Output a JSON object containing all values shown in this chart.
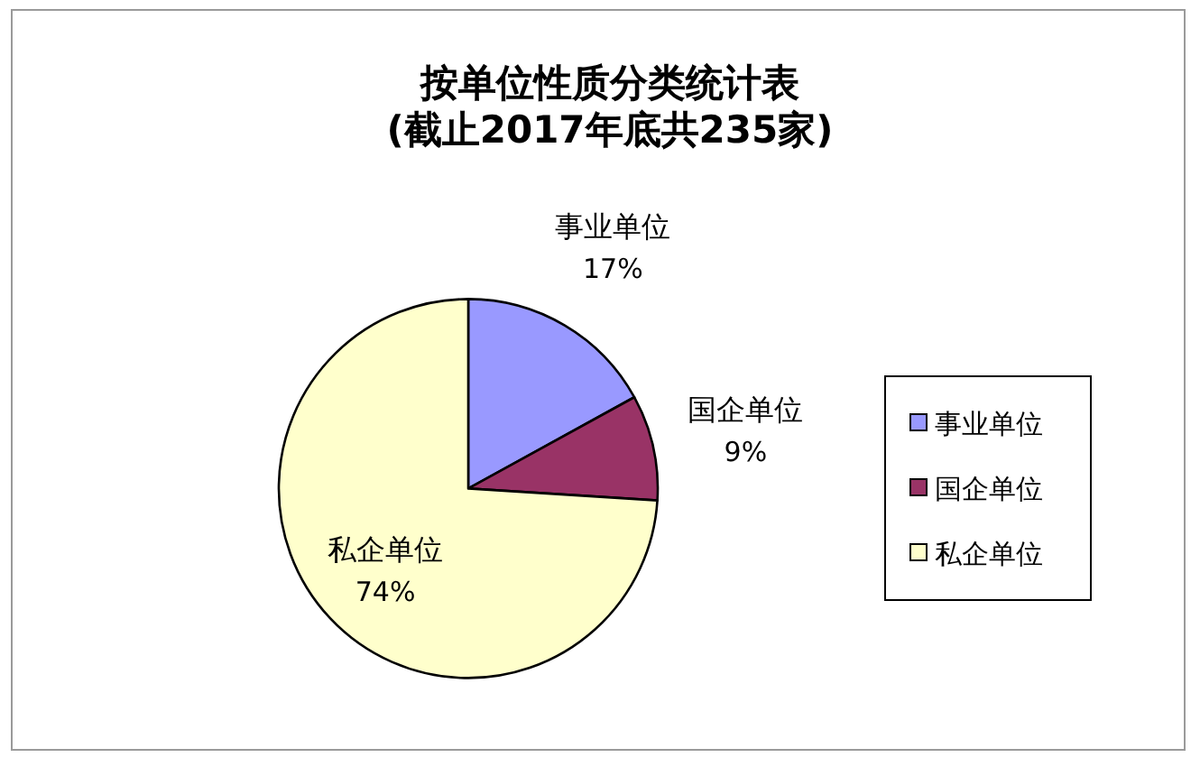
{
  "chart_data": {
    "type": "pie",
    "title": "按单位性质分类统计表",
    "subtitle": "(截止2017年底共235家)",
    "categories": [
      "事业单位",
      "国企单位",
      "私企单位"
    ],
    "values": [
      17,
      9,
      74
    ],
    "colors": [
      "#9999ff",
      "#993366",
      "#ffffcc"
    ],
    "value_labels": [
      "17%",
      "9%",
      "74%"
    ],
    "legend": "right"
  }
}
